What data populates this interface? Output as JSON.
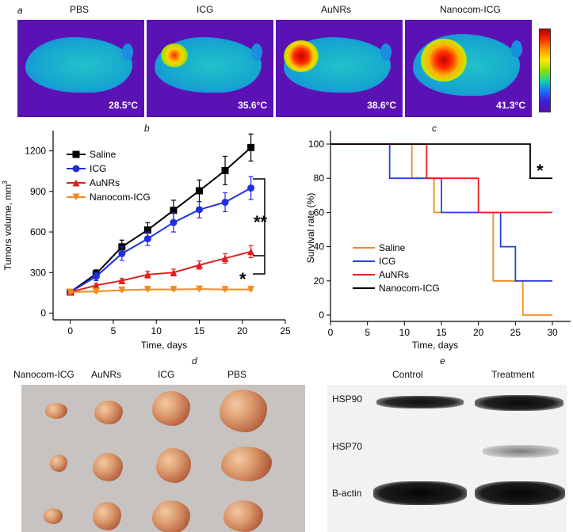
{
  "panel_letters": {
    "a": "a",
    "b": "b",
    "c": "c",
    "d": "d",
    "e": "e"
  },
  "thermal_panel": {
    "groups": [
      {
        "label": "PBS",
        "temp": "28.5°C"
      },
      {
        "label": "ICG",
        "temp": "35.6°C"
      },
      {
        "label": "AuNRs",
        "temp": "38.6°C"
      },
      {
        "label": "Nanocom-ICG",
        "temp": "41.3°C"
      }
    ]
  },
  "tumor_photo": {
    "labels": [
      "Nanocom-ICG",
      "AuNRs",
      "ICG",
      "PBS"
    ]
  },
  "western_blot": {
    "columns": [
      "Control",
      "Treatment"
    ],
    "rows": [
      "HSP90",
      "HSP70",
      "B-actin"
    ]
  },
  "chart_data": [
    {
      "type": "line",
      "title": "",
      "xlabel": "Time, days",
      "ylabel": "Tumors volume, mm",
      "ylabel_sup": "3",
      "xlim": [
        -2,
        25
      ],
      "ylim": [
        -50,
        1350
      ],
      "xticks": [
        0,
        5,
        10,
        15,
        20,
        25
      ],
      "yticks": [
        0,
        300,
        600,
        900,
        1200
      ],
      "legend_position": "top-left",
      "x": [
        0,
        3,
        6,
        9,
        12,
        15,
        18,
        21
      ],
      "series": [
        {
          "name": "Saline",
          "color": "#000000",
          "marker": "square",
          "values": [
            155,
            290,
            490,
            615,
            760,
            905,
            1055,
            1225
          ],
          "errors": [
            15,
            30,
            50,
            55,
            75,
            80,
            105,
            100
          ]
        },
        {
          "name": "ICG",
          "color": "#1f2fe0",
          "marker": "circle",
          "values": [
            155,
            270,
            440,
            550,
            670,
            765,
            820,
            925
          ],
          "errors": [
            15,
            30,
            50,
            50,
            70,
            60,
            70,
            85
          ]
        },
        {
          "name": "AuNRs",
          "color": "#e02020",
          "marker": "triangle",
          "values": [
            155,
            205,
            240,
            285,
            300,
            355,
            405,
            455
          ],
          "errors": [
            10,
            15,
            15,
            25,
            25,
            30,
            35,
            45
          ]
        },
        {
          "name": "Nanocom-ICG",
          "color": "#f08c1e",
          "marker": "triangle-down",
          "values": [
            155,
            160,
            170,
            175,
            175,
            178,
            175,
            175
          ],
          "errors": [
            8,
            8,
            8,
            8,
            8,
            8,
            8,
            8
          ]
        }
      ],
      "annotations": [
        {
          "text": "**",
          "between": [
            "Saline",
            "Nanocom-ICG"
          ]
        },
        {
          "text": "*",
          "between": [
            "AuNRs",
            "Nanocom-ICG"
          ]
        }
      ]
    },
    {
      "type": "line",
      "step": true,
      "title": "",
      "xlabel": "Time, days",
      "ylabel": "Survival rate (%)",
      "xlim": [
        0,
        30
      ],
      "ylim": [
        0,
        100
      ],
      "xticks": [
        0,
        5,
        10,
        15,
        20,
        25,
        30
      ],
      "yticks": [
        0,
        20,
        40,
        60,
        80,
        100
      ],
      "legend_position": "bottom-left",
      "series": [
        {
          "name": "Saline",
          "color": "#f08c1e",
          "points": [
            [
              0,
              100
            ],
            [
              11,
              100
            ],
            [
              11,
              80
            ],
            [
              14,
              80
            ],
            [
              14,
              60
            ],
            [
              22,
              60
            ],
            [
              22,
              20
            ],
            [
              26,
              20
            ],
            [
              26,
              0
            ],
            [
              30,
              0
            ]
          ]
        },
        {
          "name": "ICG",
          "color": "#2a3fe0",
          "points": [
            [
              0,
              100
            ],
            [
              8,
              100
            ],
            [
              8,
              80
            ],
            [
              15,
              80
            ],
            [
              15,
              60
            ],
            [
              23,
              60
            ],
            [
              23,
              40
            ],
            [
              25,
              40
            ],
            [
              25,
              20
            ],
            [
              30,
              20
            ]
          ]
        },
        {
          "name": "AuNRs",
          "color": "#e81e1e",
          "points": [
            [
              0,
              100
            ],
            [
              13,
              100
            ],
            [
              13,
              80
            ],
            [
              20,
              80
            ],
            [
              20,
              60
            ],
            [
              30,
              60
            ]
          ]
        },
        {
          "name": "Nanocom-ICG",
          "color": "#000000",
          "points": [
            [
              0,
              100
            ],
            [
              27,
              100
            ],
            [
              27,
              80
            ],
            [
              30,
              80
            ]
          ]
        }
      ],
      "annotations": [
        {
          "text": "*",
          "near": "Nanocom-ICG"
        }
      ]
    }
  ]
}
